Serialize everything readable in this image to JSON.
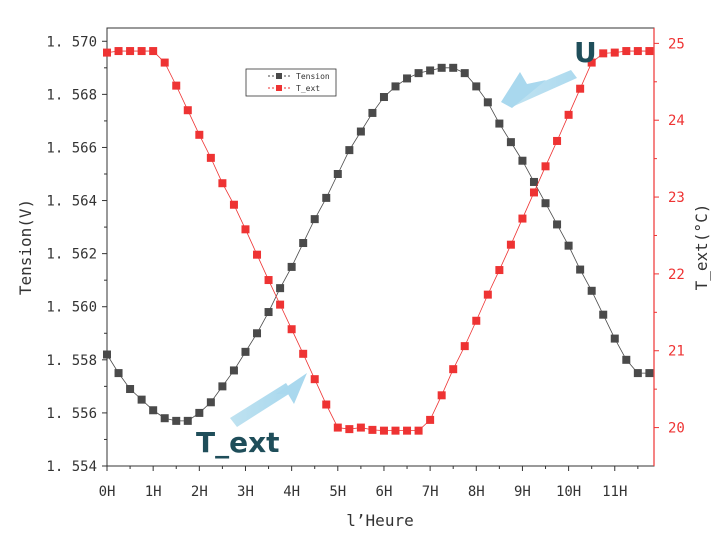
{
  "chart_data": {
    "type": "scatter",
    "title": "",
    "xlabel": "l’Heure",
    "ylabel_left": "Tension(V)",
    "ylabel_right": "T_ext(°C)",
    "x_tick_labels": [
      "0H",
      "1H",
      "2H",
      "3H",
      "4H",
      "5H",
      "6H",
      "7H",
      "8H",
      "9H",
      "10H",
      "11H"
    ],
    "xlim": [
      0,
      11.85
    ],
    "ylim_left": [
      1.554,
      1.5705
    ],
    "yticks_left": [
      "1.554",
      "1.556",
      "1.558",
      "1.560",
      "1.562",
      "1.564",
      "1.566",
      "1.568",
      "1.570"
    ],
    "ylim_right": [
      19.5,
      25.2
    ],
    "yticks_right": [
      "20",
      "21",
      "22",
      "23",
      "24",
      "25"
    ],
    "grid": false,
    "legend_position": "top-center",
    "annotations": [
      "U",
      "T_ext"
    ],
    "series": [
      {
        "name": "Tension",
        "axis": "left",
        "color": "#4a4a4a",
        "x": [
          0.0,
          0.25,
          0.5,
          0.75,
          1.0,
          1.25,
          1.5,
          1.75,
          2.0,
          2.25,
          2.5,
          2.75,
          3.0,
          3.25,
          3.5,
          3.75,
          4.0,
          4.25,
          4.5,
          4.75,
          5.0,
          5.25,
          5.5,
          5.75,
          6.0,
          6.25,
          6.5,
          6.75,
          7.0,
          7.25,
          7.5,
          7.75,
          8.0,
          8.25,
          8.5,
          8.75,
          9.0,
          9.25,
          9.5,
          9.75,
          10.0,
          10.25,
          10.5,
          10.75,
          11.0,
          11.25,
          11.5,
          11.75
        ],
        "values": [
          1.5582,
          1.5575,
          1.5569,
          1.5565,
          1.5561,
          1.5558,
          1.5557,
          1.5557,
          1.556,
          1.5564,
          1.557,
          1.5576,
          1.5583,
          1.559,
          1.5598,
          1.5607,
          1.5615,
          1.5624,
          1.5633,
          1.5641,
          1.565,
          1.5659,
          1.5666,
          1.5673,
          1.5679,
          1.5683,
          1.5686,
          1.5688,
          1.5689,
          1.569,
          1.569,
          1.5688,
          1.5683,
          1.5677,
          1.5669,
          1.5662,
          1.5655,
          1.5647,
          1.5639,
          1.5631,
          1.5623,
          1.5614,
          1.5606,
          1.5597,
          1.5588,
          1.558,
          1.5575,
          1.5575
        ]
      },
      {
        "name": "T_ext",
        "axis": "right",
        "color": "#ee3333",
        "x": [
          0.0,
          0.25,
          0.5,
          0.75,
          1.0,
          1.25,
          1.5,
          1.75,
          2.0,
          2.25,
          2.5,
          2.75,
          3.0,
          3.25,
          3.5,
          3.75,
          4.0,
          4.25,
          4.5,
          4.75,
          5.0,
          5.25,
          5.5,
          5.75,
          6.0,
          6.25,
          6.5,
          6.75,
          7.0,
          7.25,
          7.5,
          7.75,
          8.0,
          8.25,
          8.5,
          8.75,
          9.0,
          9.25,
          9.5,
          9.75,
          10.0,
          10.25,
          10.5,
          10.75,
          11.0,
          11.25,
          11.5,
          11.75
        ],
        "values": [
          24.88,
          24.9,
          24.9,
          24.9,
          24.9,
          24.75,
          24.45,
          24.13,
          23.81,
          23.51,
          23.18,
          22.9,
          22.58,
          22.25,
          21.92,
          21.6,
          21.28,
          20.96,
          20.63,
          20.3,
          20.0,
          19.98,
          20.0,
          19.97,
          19.96,
          19.96,
          19.96,
          19.96,
          20.1,
          20.42,
          20.76,
          21.06,
          21.39,
          21.73,
          22.05,
          22.38,
          22.72,
          23.06,
          23.4,
          23.73,
          24.07,
          24.41,
          24.75,
          24.87,
          24.88,
          24.9,
          24.9,
          24.9
        ]
      }
    ]
  }
}
